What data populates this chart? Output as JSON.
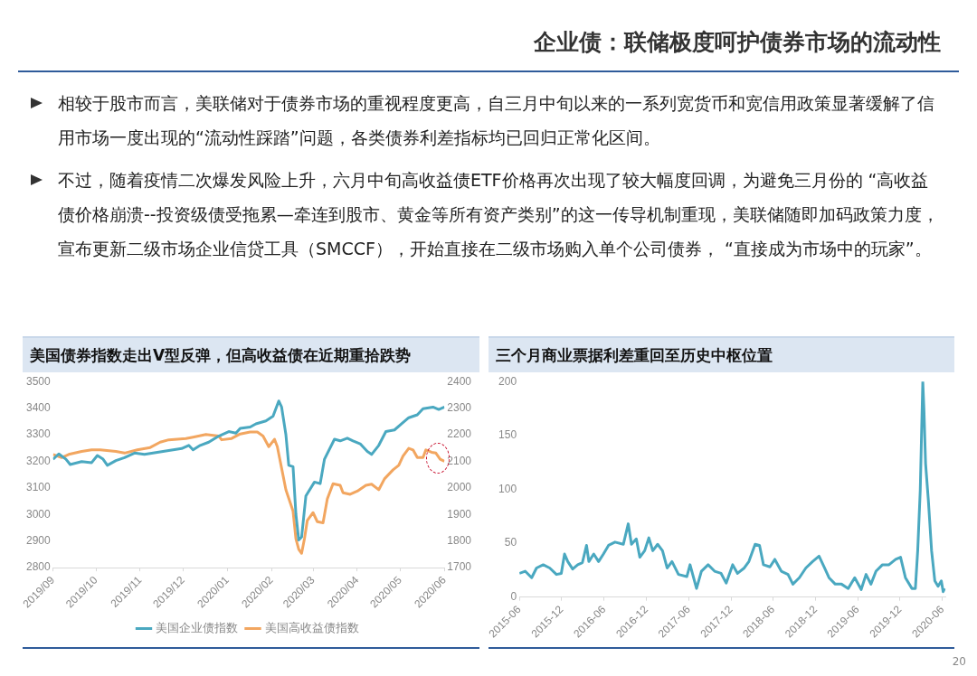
{
  "chart_data": [
    {
      "type": "other",
      "title": "企业债：联储极度呵护债券市场的流动性",
      "annotations": [
        "相较于股市而言，美联储对于债券市场的重视程度更高，自三月中旬以来的一系列宽货币和宽信用政策显著缓解了信用市场一度出现的“流动性踩踏”问题，各类债券利差指标均已回归正常化区间。",
        "不过，随着疫情二次爆发风险上升，六月中旬高收益债ETF价格再次出现了较大幅度回调，为避免三月份的 “高收益债价格崩溃--投资级债受拖累—牵连到股市、黄金等所有资产类别”的这一传导机制重现，美联储随即加码政策力度，宣布更新二级市场企业信贷工具（SMCCF），开始直接在二级市场购入单个公司债券， “直接成为市场中的玩家”。",
        "20"
      ]
    },
    {
      "type": "line",
      "title": "美国债券指数走出V型反弹，但高收益债在近期重拾跌势",
      "legend": "bottom",
      "marker": "none",
      "xlim": [
        "2019-09-01",
        "2020-06-01"
      ],
      "xticks": [
        {
          "value": "2019-09",
          "label": "2019/09"
        },
        {
          "value": "2019-10",
          "label": "2019/10"
        },
        {
          "value": "2019-11",
          "label": "2019/11"
        },
        {
          "value": "2019-12",
          "label": "2019/12"
        },
        {
          "value": "2020-01",
          "label": "2020/01"
        },
        {
          "value": "2020-02",
          "label": "2020/02"
        },
        {
          "value": "2020-03",
          "label": "2020/03"
        },
        {
          "value": "2020-04",
          "label": "2020/04"
        },
        {
          "value": "2020-05",
          "label": "2020/05"
        },
        {
          "value": "2020-06",
          "label": "2020/06"
        }
      ],
      "ylim": [
        2800,
        3500
      ],
      "yticks": [
        2800,
        2900,
        3000,
        3100,
        3200,
        3300,
        3400,
        3500
      ],
      "y2lim": [
        1700,
        2400
      ],
      "y2ticks": [
        1700,
        1800,
        1900,
        2000,
        2100,
        2200,
        2300,
        2400
      ],
      "series": [
        {
          "name": "美国企业债指数",
          "color": "#4aa8c0",
          "x": [
            "2019-09-01",
            "2019-09-05",
            "2019-09-10",
            "2019-09-13",
            "2019-09-21",
            "2019-09-28",
            "2019-10-02",
            "2019-10-06",
            "2019-10-09",
            "2019-10-15",
            "2019-10-21",
            "2019-10-28",
            "2019-11-04",
            "2019-11-10",
            "2019-11-17",
            "2019-11-24",
            "2019-11-30",
            "2019-12-05",
            "2019-12-08",
            "2019-12-13",
            "2019-12-19",
            "2019-12-26",
            "2020-01-02",
            "2020-01-07",
            "2020-01-10",
            "2020-01-17",
            "2020-01-21",
            "2020-01-28",
            "2020-02-02",
            "2020-02-06",
            "2020-02-08",
            "2020-02-11",
            "2020-02-13",
            "2020-02-16",
            "2020-02-18",
            "2020-02-20",
            "2020-02-22",
            "2020-02-25",
            "2020-03-02",
            "2020-03-06",
            "2020-03-09",
            "2020-03-16",
            "2020-03-20",
            "2020-03-25",
            "2020-03-29",
            "2020-04-03",
            "2020-04-08",
            "2020-04-11",
            "2020-04-16",
            "2020-04-21",
            "2020-04-27",
            "2020-05-02",
            "2020-05-07",
            "2020-05-13",
            "2020-05-17",
            "2020-05-24",
            "2020-05-28",
            "2020-06-01"
          ],
          "values": [
            3208,
            3228,
            3208,
            3188,
            3199,
            3195,
            3222,
            3208,
            3185,
            3203,
            3214,
            3231,
            3226,
            3231,
            3237,
            3243,
            3248,
            3260,
            3243,
            3260,
            3272,
            3295,
            3312,
            3306,
            3324,
            3329,
            3341,
            3352,
            3370,
            3427,
            3404,
            3300,
            3185,
            3180,
            3001,
            2904,
            2915,
            3070,
            3122,
            3116,
            3208,
            3283,
            3277,
            3287,
            3277,
            3266,
            3237,
            3226,
            3260,
            3312,
            3318,
            3341,
            3364,
            3375,
            3398,
            3404,
            3395,
            3404
          ]
        },
        {
          "name": "美国高收益债指数",
          "color": "#f2a660",
          "axis": "y2",
          "x": [
            "2019-09-01",
            "2019-09-07",
            "2019-09-12",
            "2019-09-21",
            "2019-09-28",
            "2019-10-04",
            "2019-10-15",
            "2019-10-21",
            "2019-10-30",
            "2019-11-08",
            "2019-11-15",
            "2019-11-21",
            "2019-12-03",
            "2019-12-08",
            "2019-12-17",
            "2019-12-26",
            "2019-12-28",
            "2020-01-04",
            "2020-01-10",
            "2020-01-17",
            "2020-01-22",
            "2020-01-26",
            "2020-01-30",
            "2020-02-03",
            "2020-02-05",
            "2020-02-08",
            "2020-02-11",
            "2020-02-16",
            "2020-02-18",
            "2020-02-20",
            "2020-02-22",
            "2020-02-24",
            "2020-02-26",
            "2020-03-01",
            "2020-03-04",
            "2020-03-08",
            "2020-03-11",
            "2020-03-15",
            "2020-03-20",
            "2020-03-22",
            "2020-03-27",
            "2020-04-01",
            "2020-04-07",
            "2020-04-11",
            "2020-04-16",
            "2020-04-20",
            "2020-04-26",
            "2020-04-30",
            "2020-05-03",
            "2020-05-07",
            "2020-05-10",
            "2020-05-13",
            "2020-05-17",
            "2020-05-19",
            "2020-05-23",
            "2020-05-26",
            "2020-05-29",
            "2020-06-01"
          ],
          "values": [
            2126,
            2114,
            2126,
            2137,
            2143,
            2143,
            2137,
            2131,
            2143,
            2152,
            2172,
            2181,
            2186,
            2191,
            2201,
            2195,
            2181,
            2186,
            2203,
            2210,
            2210,
            2195,
            2155,
            2183,
            2155,
            2074,
            1993,
            1913,
            1809,
            1769,
            1754,
            1809,
            1878,
            1907,
            1873,
            1869,
            1959,
            2016,
            2010,
            1982,
            1976,
            1988,
            2010,
            2014,
            1993,
            2034,
            2068,
            2085,
            2120,
            2149,
            2143,
            2114,
            2114,
            2143,
            2134,
            2131,
            2108,
            2100
          ]
        }
      ]
    },
    {
      "type": "line",
      "title": "三个月商业票据利差重回至历史中枢位置",
      "marker": "none",
      "xlim": [
        "2015-06-01",
        "2020-06-15"
      ],
      "xticks": [
        {
          "value": "2015-06",
          "label": "2015-06"
        },
        {
          "value": "2015-12",
          "label": "2015-12"
        },
        {
          "value": "2016-06",
          "label": "2016-06"
        },
        {
          "value": "2016-12",
          "label": "2016-12"
        },
        {
          "value": "2017-06",
          "label": "2017-06"
        },
        {
          "value": "2017-12",
          "label": "2017-12"
        },
        {
          "value": "2018-06",
          "label": "2018-06"
        },
        {
          "value": "2018-12",
          "label": "2018-12"
        },
        {
          "value": "2019-06",
          "label": "2019-06"
        },
        {
          "value": "2019-12",
          "label": "2019-12"
        },
        {
          "value": "2020-06",
          "label": "2020-06"
        }
      ],
      "ylim": [
        0,
        200
      ],
      "yticks": [
        0,
        50,
        100,
        150,
        200
      ],
      "series": [
        {
          "color": "#4aa8c0",
          "x": [
            "2015-06-01",
            "2015-06-26",
            "2015-07-24",
            "2015-08-14",
            "2015-09-12",
            "2015-10-10",
            "2015-11-08",
            "2015-11-29",
            "2015-12-13",
            "2015-12-27",
            "2016-01-17",
            "2016-02-08",
            "2016-02-28",
            "2016-03-17",
            "2016-03-27",
            "2016-04-17",
            "2016-05-08",
            "2016-05-29",
            "2016-06-20",
            "2016-07-18",
            "2016-08-23",
            "2016-09-13",
            "2016-09-27",
            "2016-10-18",
            "2016-11-02",
            "2016-11-23",
            "2016-12-11",
            "2016-12-28",
            "2017-01-18",
            "2017-02-08",
            "2017-02-28",
            "2017-03-21",
            "2017-04-18",
            "2017-05-24",
            "2017-06-07",
            "2017-07-05",
            "2017-07-26",
            "2017-08-24",
            "2017-09-21",
            "2017-10-19",
            "2017-11-10",
            "2017-12-08",
            "2017-12-29",
            "2018-01-27",
            "2018-02-16",
            "2018-03-15",
            "2018-04-03",
            "2018-04-20",
            "2018-05-18",
            "2018-06-08",
            "2018-07-06",
            "2018-08-04",
            "2018-08-25",
            "2018-09-22",
            "2018-10-20",
            "2018-11-18",
            "2018-12-16",
            "2019-01-07",
            "2019-01-28",
            "2019-02-24",
            "2019-03-23",
            "2019-04-21",
            "2019-05-19",
            "2019-06-16",
            "2019-07-07",
            "2019-07-28",
            "2019-08-19",
            "2019-09-16",
            "2019-10-14",
            "2019-11-12",
            "2019-12-03",
            "2019-12-24",
            "2020-01-21",
            "2020-02-05",
            "2020-02-15",
            "2020-02-26",
            "2020-03-08",
            "2020-03-13",
            "2020-03-20",
            "2020-04-01",
            "2020-04-15",
            "2020-04-29",
            "2020-05-13",
            "2020-05-27",
            "2020-06-04",
            "2020-06-10"
          ],
          "values": [
            22,
            24,
            18,
            27,
            30,
            27,
            21,
            22,
            40,
            33,
            26,
            30,
            32,
            48,
            33,
            40,
            33,
            40,
            48,
            51,
            49,
            68,
            49,
            54,
            37,
            43,
            55,
            43,
            49,
            43,
            27,
            33,
            21,
            19,
            30,
            8,
            24,
            30,
            24,
            22,
            13,
            30,
            22,
            27,
            33,
            49,
            48,
            30,
            28,
            35,
            24,
            21,
            12,
            18,
            27,
            33,
            38,
            28,
            18,
            12,
            12,
            8,
            18,
            7,
            21,
            12,
            24,
            30,
            30,
            35,
            37,
            18,
            8,
            8,
            43,
            99,
            200,
            174,
            124,
            90,
            43,
            15,
            10,
            15,
            5,
            8
          ]
        }
      ]
    }
  ]
}
